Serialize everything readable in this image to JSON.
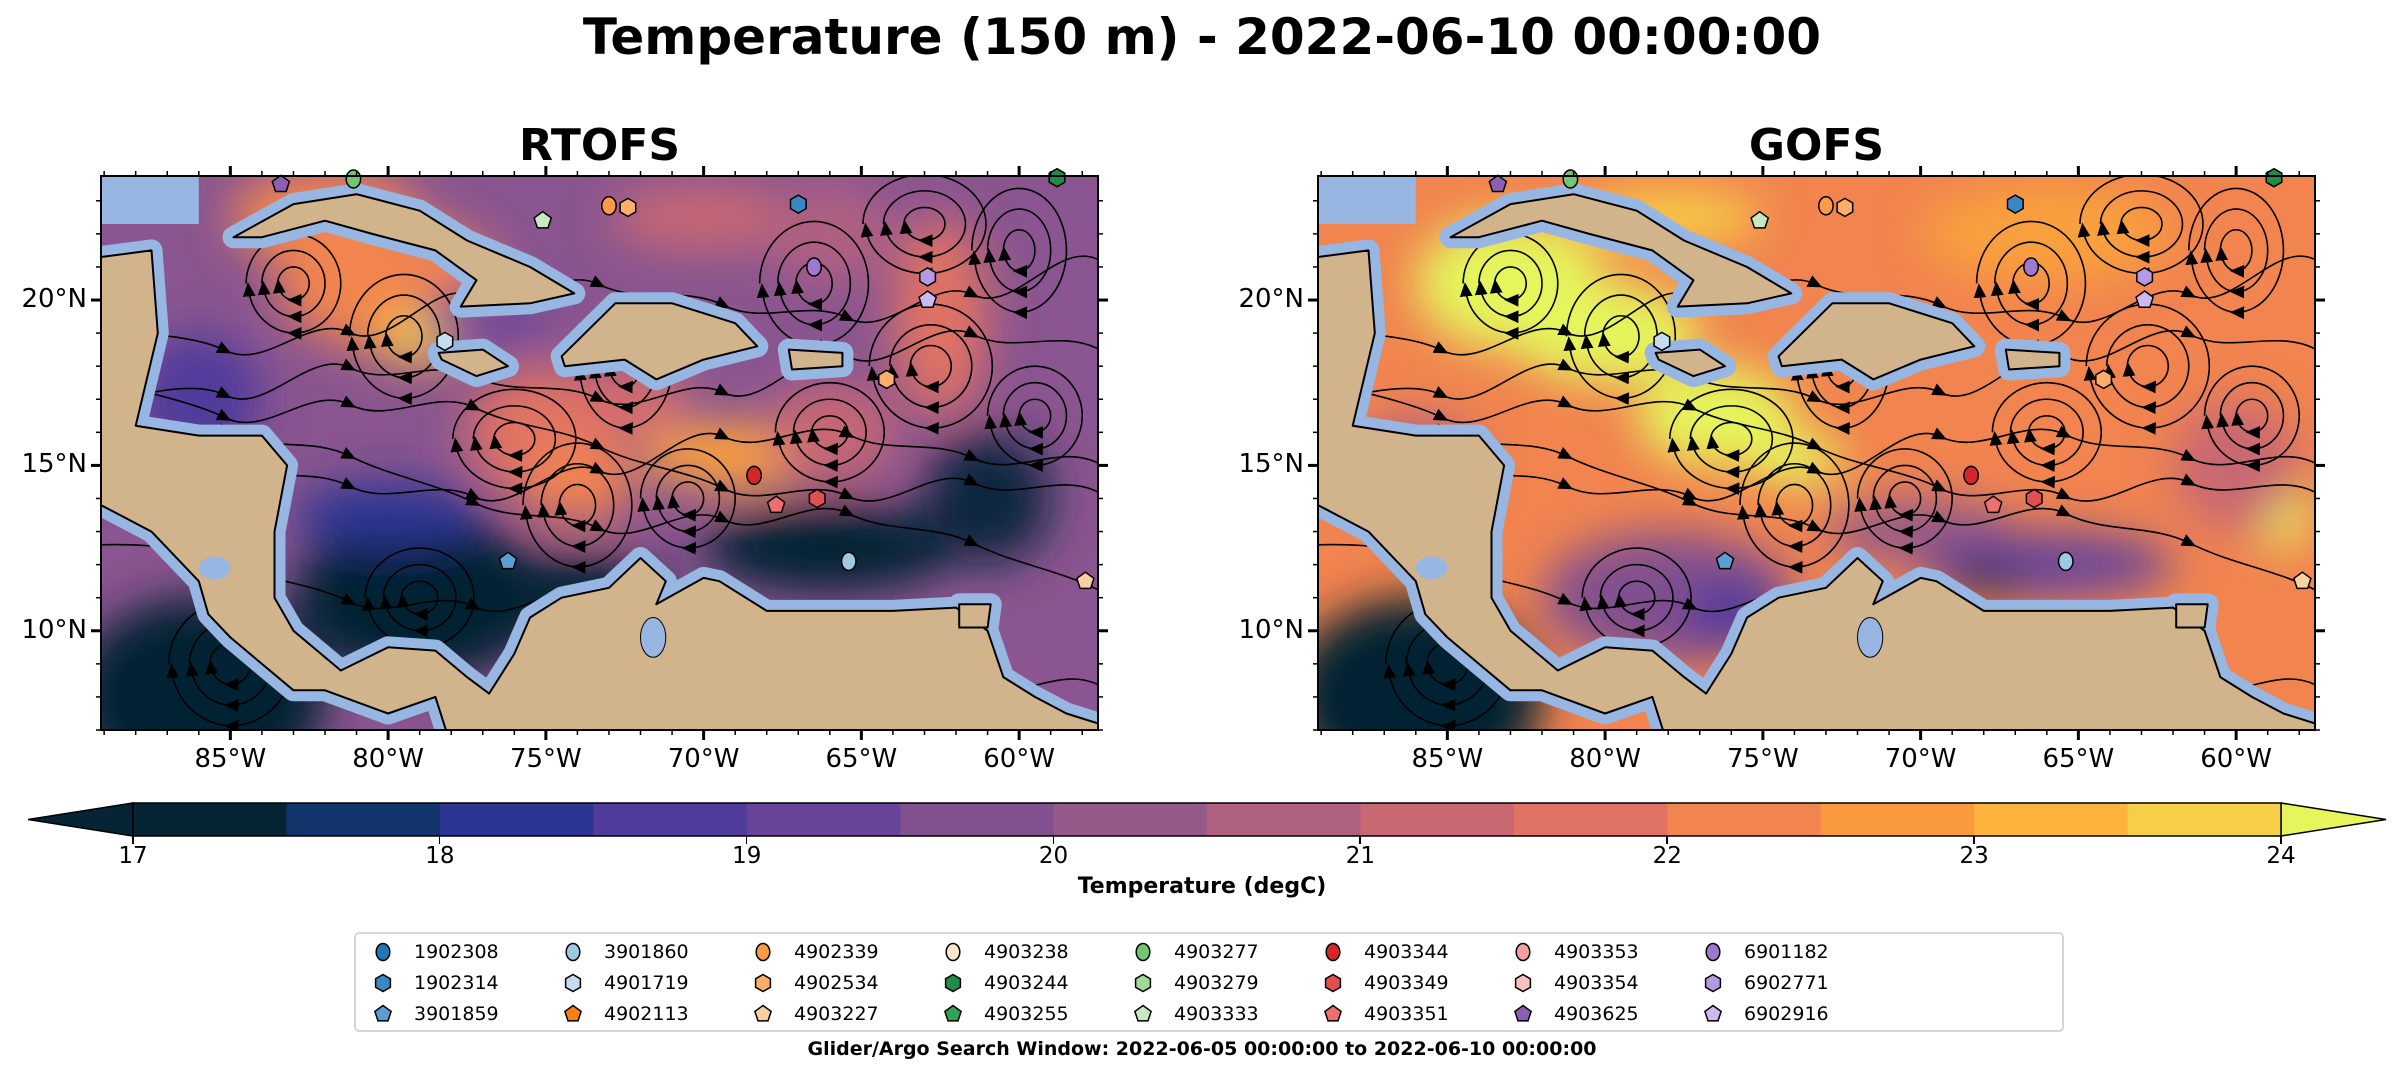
{
  "title": "Temperature (150 m) - 2022-06-10 00:00:00",
  "colors": {
    "land": "#d2b48c",
    "shallow": "#97b6e1",
    "frame": "#000000"
  },
  "chart_data": [
    {
      "type": "heatmap",
      "title": "RTOFS",
      "xlim": [
        -89.1,
        -57.5
      ],
      "ylim": [
        7.0,
        23.75
      ],
      "x_ticks": [
        -85,
        -80,
        -75,
        -70,
        -65,
        -60
      ],
      "x_tick_labels": [
        "85°W",
        "80°W",
        "75°W",
        "70°W",
        "65°W",
        "60°W"
      ],
      "y_ticks": [
        10,
        15,
        20
      ],
      "y_tick_labels": [
        "10°N",
        "15°N",
        "20°N"
      ]
    },
    {
      "type": "heatmap",
      "title": "GOFS",
      "xlim": [
        -89.1,
        -57.5
      ],
      "ylim": [
        7.0,
        23.75
      ],
      "x_ticks": [
        -85,
        -80,
        -75,
        -70,
        -65,
        -60
      ],
      "x_tick_labels": [
        "85°W",
        "80°W",
        "75°W",
        "70°W",
        "65°W",
        "60°W"
      ],
      "y_ticks": [
        10,
        15,
        20
      ],
      "y_tick_labels": [
        "10°N",
        "15°N",
        "20°N"
      ]
    }
  ],
  "colorbar": {
    "label": "Temperature (degC)",
    "min": 17,
    "max": 24,
    "step": 0.5,
    "extend": "both",
    "ticks": [
      "17",
      "18",
      "19",
      "20",
      "21",
      "22",
      "23",
      "24"
    ],
    "colors": [
      "#062433",
      "#11346a",
      "#2c3592",
      "#513b9b",
      "#68459a",
      "#81508f",
      "#955a88",
      "#b06081",
      "#c86873",
      "#e07264",
      "#f1844f",
      "#f99a3e",
      "#fcb43d",
      "#f7cf46"
    ],
    "under_color": "#062433",
    "over_color": "#e5f55b"
  },
  "legend": [
    {
      "id": "1902308",
      "shape": "circle",
      "color": "#1f77b4"
    },
    {
      "id": "1902314",
      "shape": "hexagon",
      "color": "#3a87c4"
    },
    {
      "id": "3901859",
      "shape": "pentagon",
      "color": "#5a9fd4"
    },
    {
      "id": "3901860",
      "shape": "circle",
      "color": "#9ecae1"
    },
    {
      "id": "4901719",
      "shape": "hexagon",
      "color": "#c6dbef"
    },
    {
      "id": "4902113",
      "shape": "pentagon",
      "color": "#fd7f0e"
    },
    {
      "id": "4902339",
      "shape": "circle",
      "color": "#fd9a45"
    },
    {
      "id": "4902534",
      "shape": "hexagon",
      "color": "#fdae6b"
    },
    {
      "id": "4903227",
      "shape": "pentagon",
      "color": "#fdd0a2"
    },
    {
      "id": "4903238",
      "shape": "circle",
      "color": "#fee4c8"
    },
    {
      "id": "4903244",
      "shape": "hexagon",
      "color": "#238b45"
    },
    {
      "id": "4903255",
      "shape": "pentagon",
      "color": "#31a354"
    },
    {
      "id": "4903277",
      "shape": "circle",
      "color": "#74c476"
    },
    {
      "id": "4903279",
      "shape": "hexagon",
      "color": "#a1d99b"
    },
    {
      "id": "4903333",
      "shape": "pentagon",
      "color": "#c7e9c0"
    },
    {
      "id": "4903344",
      "shape": "circle",
      "color": "#d62728"
    },
    {
      "id": "4903349",
      "shape": "hexagon",
      "color": "#e05050"
    },
    {
      "id": "4903351",
      "shape": "pentagon",
      "color": "#ef6f6f"
    },
    {
      "id": "4903353",
      "shape": "circle",
      "color": "#f4a0a0"
    },
    {
      "id": "4903354",
      "shape": "hexagon",
      "color": "#fac0c0"
    },
    {
      "id": "4903625",
      "shape": "pentagon",
      "color": "#8c5fb4"
    },
    {
      "id": "6901182",
      "shape": "circle",
      "color": "#9e78cf"
    },
    {
      "id": "6902771",
      "shape": "hexagon",
      "color": "#b49ae3"
    },
    {
      "id": "6902916",
      "shape": "pentagon",
      "color": "#cdb8f0"
    }
  ],
  "platform_positions": [
    {
      "id": "4903625",
      "lon": -83.4,
      "lat": 23.5
    },
    {
      "id": "4903277",
      "lon": -81.1,
      "lat": 23.66
    },
    {
      "id": "4903333",
      "lon": -75.1,
      "lat": 22.4
    },
    {
      "id": "4902339",
      "lon": -73.0,
      "lat": 22.85
    },
    {
      "id": "4902534",
      "lon": -72.4,
      "lat": 22.8
    },
    {
      "id": "1902314",
      "lon": -67.0,
      "lat": 22.9
    },
    {
      "id": "6901182",
      "lon": -66.5,
      "lat": 21.0
    },
    {
      "id": "6902771",
      "lon": -62.9,
      "lat": 20.7
    },
    {
      "id": "6902916",
      "lon": -62.9,
      "lat": 20.0
    },
    {
      "id": "4903244",
      "lon": -58.8,
      "lat": 23.7
    },
    {
      "id": "4901719",
      "lon": -78.2,
      "lat": 18.75
    },
    {
      "id": "4902534",
      "lon": -64.2,
      "lat": 17.6
    },
    {
      "id": "4903344",
      "lon": -68.4,
      "lat": 14.7
    },
    {
      "id": "4903351",
      "lon": -67.7,
      "lat": 13.8
    },
    {
      "id": "4903349",
      "lon": -66.4,
      "lat": 14.0
    },
    {
      "id": "3901860",
      "lon": -65.4,
      "lat": 12.1
    },
    {
      "id": "3901859",
      "lon": -76.2,
      "lat": 12.1
    },
    {
      "id": "4903227",
      "lon": -57.9,
      "lat": 11.5
    }
  ],
  "caption": "Glider/Argo Search Window: 2022-06-05 00:00:00 to 2022-06-10 00:00:00"
}
